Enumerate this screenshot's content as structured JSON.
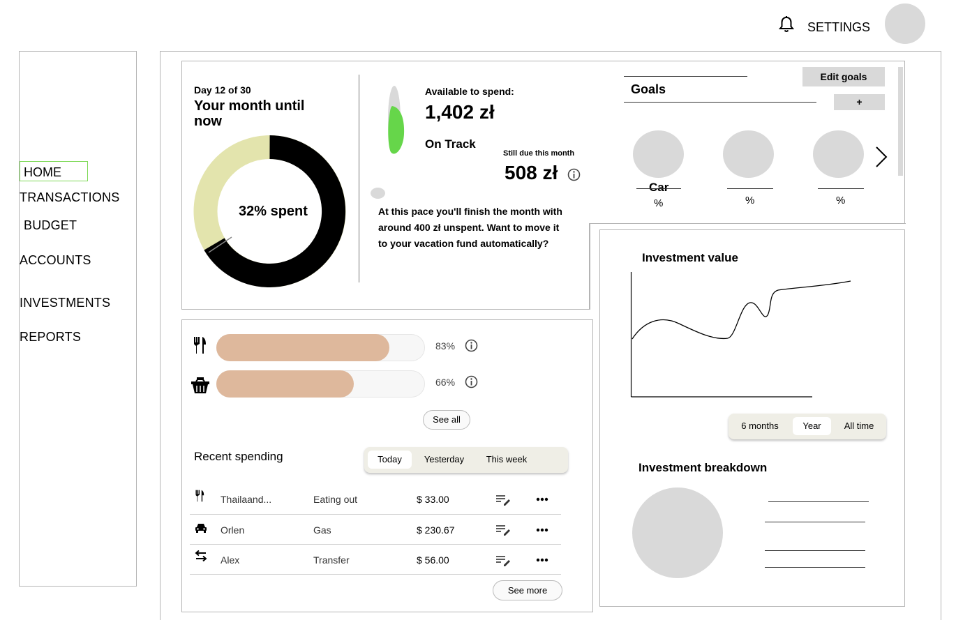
{
  "header": {
    "settings_label": "SETTINGS",
    "icons": [
      "bell-icon",
      "avatar"
    ]
  },
  "nav": {
    "items": [
      {
        "label": "HOME",
        "active": true
      },
      {
        "label": "TRANSACTIONS"
      },
      {
        "label": "BUDGET"
      },
      {
        "label": "ACCOUNTS"
      },
      {
        "label": "INVESTMENTS"
      },
      {
        "label": "REPORTS"
      }
    ],
    "active_color": "#7ed957"
  },
  "month": {
    "day_label": "Day 12 of 30",
    "title": "Your month until now",
    "donut_center": "32% spent",
    "colors": {
      "spent": "#000000",
      "remaining": "#e3e4ad"
    }
  },
  "spend": {
    "available_label": "Available to spend:",
    "available_value": "1,402 zł",
    "status": "On Track",
    "status_color": "#66d64a",
    "due_label": "Still due this month",
    "due_value": "508 zł",
    "message": "At this pace you'll finish the month with around 400 zł unspent. Want to move it to your vacation fund automatically?"
  },
  "goals": {
    "title": "Goals",
    "edit_label": "Edit goals",
    "add_label": "+",
    "items": [
      {
        "name": "Car",
        "percent_label": "%"
      },
      {
        "name": "",
        "percent_label": "%"
      },
      {
        "name": "",
        "percent_label": "%"
      }
    ],
    "next_icon": "chevron-right-icon"
  },
  "budget": {
    "bar_color": "#deb89c",
    "items": [
      {
        "icon": "fork-knife-icon",
        "percent": 83,
        "percent_label": "83%"
      },
      {
        "icon": "basket-icon",
        "percent": 66,
        "percent_label": "66%"
      }
    ],
    "see_all_label": "See all"
  },
  "recent": {
    "title": "Recent spending",
    "tabs": [
      {
        "label": "Today",
        "active": true
      },
      {
        "label": "Yesterday"
      },
      {
        "label": "This week"
      }
    ],
    "rows": [
      {
        "icon": "fork-knife-icon",
        "name": "Thailaand...",
        "category": "Eating out",
        "amount": "$ 33.00"
      },
      {
        "icon": "car-icon",
        "name": "Orlen",
        "category": "Gas",
        "amount": "$ 230.67"
      },
      {
        "icon": "transfer-icon",
        "name": "Alex",
        "category": "Transfer",
        "amount": "$ 56.00"
      }
    ],
    "see_more_label": "See more"
  },
  "investment": {
    "value_title": "Investment value",
    "ranges": [
      {
        "label": "6 months"
      },
      {
        "label": "Year",
        "active": true
      },
      {
        "label": "All time"
      }
    ],
    "breakdown_title": "Investment breakdown"
  }
}
